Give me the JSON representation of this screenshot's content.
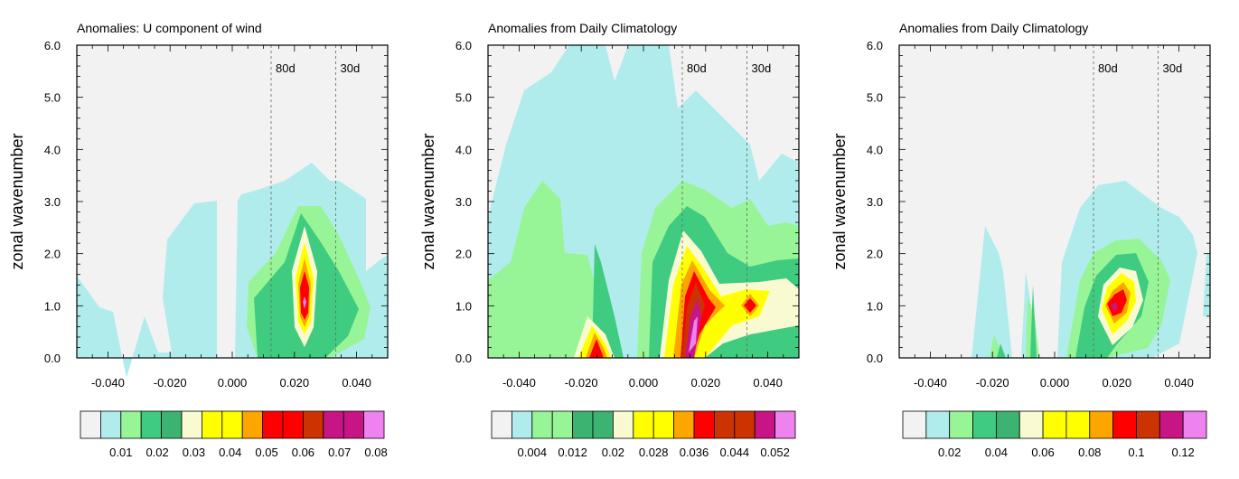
{
  "chart_data": [
    {
      "type": "heatmap",
      "title": "Anomalies: U component of wind",
      "ylabel": "zonal wavenumber",
      "xlim": [
        -0.05,
        0.05
      ],
      "ylim": [
        0,
        6
      ],
      "x_ticks": [
        "-0.040",
        "-0.020",
        "0.000",
        "0.020",
        "0.040"
      ],
      "y_ticks": [
        "0.0",
        "1.0",
        "2.0",
        "3.0",
        "4.0",
        "5.0",
        "6.0"
      ],
      "reference_lines": [
        {
          "label": "80d",
          "x": 0.0125
        },
        {
          "label": "30d",
          "x": 0.0333
        }
      ],
      "colorbar": {
        "colors": [
          "#f2f2f2",
          "#b0ecec",
          "#97f597",
          "#40cc80",
          "#3cb371",
          "#fafad2",
          "#ffff00",
          "#ffff00",
          "#ffa500",
          "#ff0000",
          "#ff0000",
          "#cc3300",
          "#c71585",
          "#c71585",
          "#ee82ee"
        ],
        "labels": [
          "0.01",
          "0.02",
          "0.03",
          "0.04",
          "0.05",
          "0.06",
          "0.07",
          "0.08"
        ],
        "label_offset": 1,
        "label_step": 1.8
      }
    },
    {
      "type": "heatmap",
      "title": "Anomalies from Daily Climatology",
      "ylabel": "zonal wavenumber",
      "xlim": [
        -0.05,
        0.05
      ],
      "ylim": [
        0,
        6
      ],
      "x_ticks": [
        "-0.040",
        "-0.020",
        "0.000",
        "0.020",
        "0.040"
      ],
      "y_ticks": [
        "0.0",
        "1.0",
        "2.0",
        "3.0",
        "4.0",
        "5.0",
        "6.0"
      ],
      "reference_lines": [
        {
          "label": "80d",
          "x": 0.0125
        },
        {
          "label": "30d",
          "x": 0.0333
        }
      ],
      "colorbar": {
        "colors": [
          "#f2f2f2",
          "#b0ecec",
          "#97f597",
          "#97f597",
          "#3cb371",
          "#3cb371",
          "#fafad2",
          "#ffff00",
          "#ffff00",
          "#ffa500",
          "#ff0000",
          "#cc3300",
          "#cc3300",
          "#c71585",
          "#ee82ee"
        ],
        "labels": [
          "0.004",
          "0.012",
          "0.02",
          "0.028",
          "0.036",
          "0.044",
          "0.052"
        ],
        "label_offset": 1,
        "label_step": 2
      }
    },
    {
      "type": "heatmap",
      "title": "Anomalies from Daily Climatology",
      "ylabel": "zonal wavenumber",
      "xlim": [
        -0.05,
        0.05
      ],
      "ylim": [
        0,
        6
      ],
      "x_ticks": [
        "-0.040",
        "-0.020",
        "0.000",
        "0.020",
        "0.040"
      ],
      "y_ticks": [
        "0.0",
        "1.0",
        "2.0",
        "3.0",
        "4.0",
        "5.0",
        "6.0"
      ],
      "reference_lines": [
        {
          "label": "80d",
          "x": 0.0125
        },
        {
          "label": "30d",
          "x": 0.0333
        }
      ],
      "colorbar": {
        "colors": [
          "#f2f2f2",
          "#b0ecec",
          "#97f597",
          "#40cc80",
          "#3cb371",
          "#fafad2",
          "#ffff00",
          "#ffff00",
          "#ffa500",
          "#ff0000",
          "#cc3300",
          "#c71585",
          "#ee82ee"
        ],
        "labels": [
          "0.02",
          "0.04",
          "0.06",
          "0.08",
          "0.1",
          "0.12"
        ],
        "label_offset": 1,
        "label_step": 2
      }
    }
  ]
}
